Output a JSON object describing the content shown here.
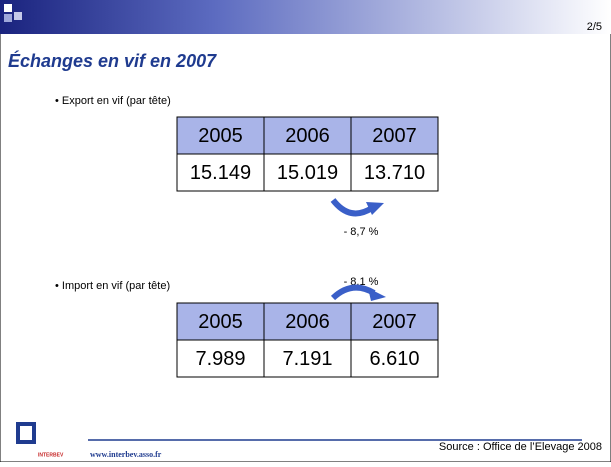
{
  "header": {
    "page": "2/5"
  },
  "title": "Échanges en vif en 2007",
  "sections": [
    {
      "label": "• Export en vif (par tête)",
      "table": {
        "headers": [
          "2005",
          "2006",
          "2007"
        ],
        "values": [
          "15.149",
          "15.019",
          "13.710"
        ]
      },
      "change": "- 8,7 %"
    },
    {
      "label": "• Import en vif (par tête)",
      "table": {
        "headers": [
          "2005",
          "2006",
          "2007"
        ],
        "values": [
          "7.989",
          "7.191",
          "6.610"
        ]
      },
      "change": "- 8,1 %"
    }
  ],
  "footer": {
    "logo": "INTERBEV",
    "url": "www.interbev.asso.fr",
    "source": "Source : Office de l’Elevage 2008"
  }
}
